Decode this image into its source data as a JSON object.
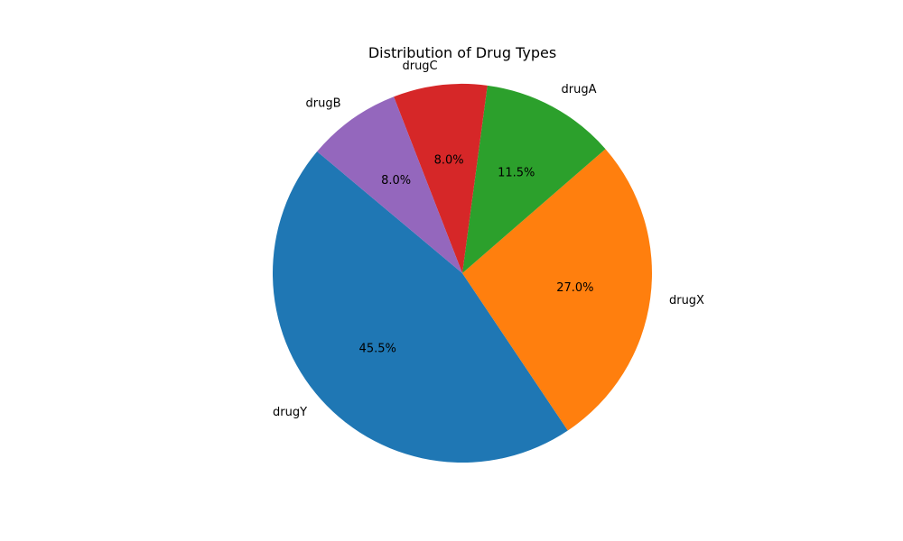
{
  "chart_data": {
    "type": "pie",
    "title": "Distribution of Drug Types",
    "start_angle_deg": 140,
    "direction": "counterclockwise",
    "slices": [
      {
        "label": "drugY",
        "value": 45.5,
        "pct_label": "45.5%",
        "color": "#1f77b4"
      },
      {
        "label": "drugX",
        "value": 27.0,
        "pct_label": "27.0%",
        "color": "#ff7f0e"
      },
      {
        "label": "drugA",
        "value": 11.5,
        "pct_label": "11.5%",
        "color": "#2ca02c"
      },
      {
        "label": "drugC",
        "value": 8.0,
        "pct_label": "8.0%",
        "color": "#d62728"
      },
      {
        "label": "drugB",
        "value": 8.0,
        "pct_label": "8.0%",
        "color": "#9467bd"
      }
    ]
  }
}
